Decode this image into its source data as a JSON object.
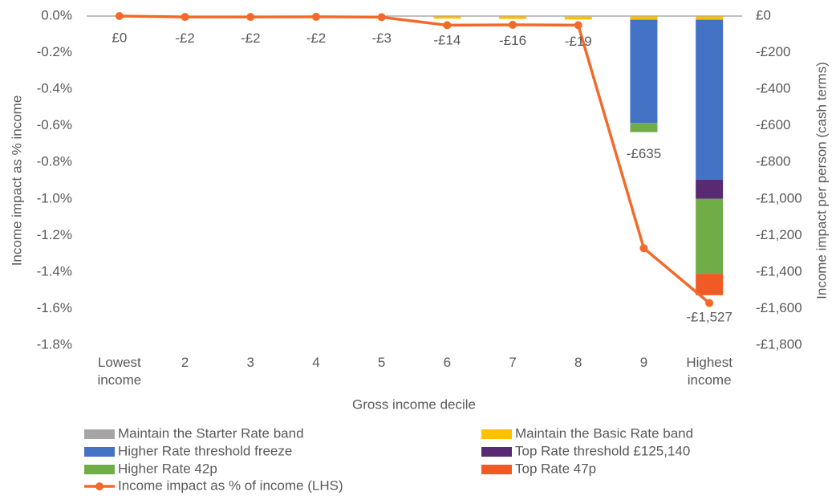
{
  "chart_data": {
    "type": "bar",
    "categories": [
      "Lowest income",
      "2",
      "3",
      "4",
      "5",
      "6",
      "7",
      "8",
      "9",
      "Highest income"
    ],
    "xlabel": "Gross income decile",
    "ylabel": "Income impact as % income",
    "y2label": "Income impact per person (cash terms)",
    "ylim": [
      -1.8,
      0
    ],
    "yticks": [
      {
        "value": 0,
        "label": "0.0%"
      },
      {
        "value": -0.2,
        "label": "-0.2%"
      },
      {
        "value": -0.4,
        "label": "-0.4%"
      },
      {
        "value": -0.6,
        "label": "-0.6%"
      },
      {
        "value": -0.8,
        "label": "-0.8%"
      },
      {
        "value": -1.0,
        "label": "-1.0%"
      },
      {
        "value": -1.2,
        "label": "-1.2%"
      },
      {
        "value": -1.4,
        "label": "-1.4%"
      },
      {
        "value": -1.6,
        "label": "-1.6%"
      },
      {
        "value": -1.8,
        "label": "-1.8%"
      }
    ],
    "y2lim": [
      -1800,
      0
    ],
    "y2ticks": [
      {
        "value": 0,
        "label": "£0"
      },
      {
        "value": -200,
        "label": "-£200"
      },
      {
        "value": -400,
        "label": "-£400"
      },
      {
        "value": -600,
        "label": "-£600"
      },
      {
        "value": -800,
        "label": "-£800"
      },
      {
        "value": -1000,
        "label": "-£1,000"
      },
      {
        "value": -1200,
        "label": "-£1,200"
      },
      {
        "value": -1400,
        "label": "-£1,400"
      },
      {
        "value": -1600,
        "label": "-£1,600"
      },
      {
        "value": -1800,
        "label": "-£1,800"
      }
    ],
    "series": [
      {
        "name": "Maintain the Starter Rate band",
        "color": "#a5a5a5",
        "axis": "y2",
        "values": [
          0,
          -2,
          -2,
          -2,
          -3,
          -2,
          -2,
          -3,
          -2,
          -2
        ]
      },
      {
        "name": "Maintain the Basic Rate band",
        "color": "#ffc000",
        "axis": "y2",
        "values": [
          0,
          0,
          0,
          0,
          0,
          -12,
          -14,
          -16,
          -18,
          -18
        ]
      },
      {
        "name": "Higher Rate threshold freeze",
        "color": "#4472c4",
        "axis": "y2",
        "values": [
          0,
          0,
          0,
          0,
          0,
          0,
          0,
          0,
          -565,
          -875
        ]
      },
      {
        "name": "Top Rate threshold £125,140",
        "color": "#582a72",
        "axis": "y2",
        "values": [
          0,
          0,
          0,
          0,
          0,
          0,
          0,
          0,
          0,
          -105
        ]
      },
      {
        "name": "Higher Rate 42p",
        "color": "#70ad47",
        "axis": "y2",
        "values": [
          0,
          0,
          0,
          0,
          0,
          0,
          0,
          0,
          -50,
          -410
        ]
      },
      {
        "name": "Top Rate 47p",
        "color": "#f05a24",
        "axis": "y2",
        "values": [
          0,
          0,
          0,
          0,
          0,
          0,
          0,
          0,
          0,
          -117
        ]
      },
      {
        "name": "Income impact as % of income (LHS)",
        "color": "#f26a2a",
        "type": "line",
        "axis": "y",
        "values": [
          0,
          -0.005,
          -0.005,
          -0.004,
          -0.006,
          -0.05,
          -0.048,
          -0.05,
          -1.27,
          -1.57
        ]
      }
    ],
    "totals": {
      "values": [
        0,
        -2,
        -2,
        -2,
        -3,
        -14,
        -16,
        -19,
        -635,
        -1527
      ],
      "value_labels": [
        "£0",
        "-£2",
        "-£2",
        "-£2",
        "-£3",
        "-£14",
        "-£16",
        "-£19",
        "-£635",
        "-£1,527"
      ]
    }
  }
}
